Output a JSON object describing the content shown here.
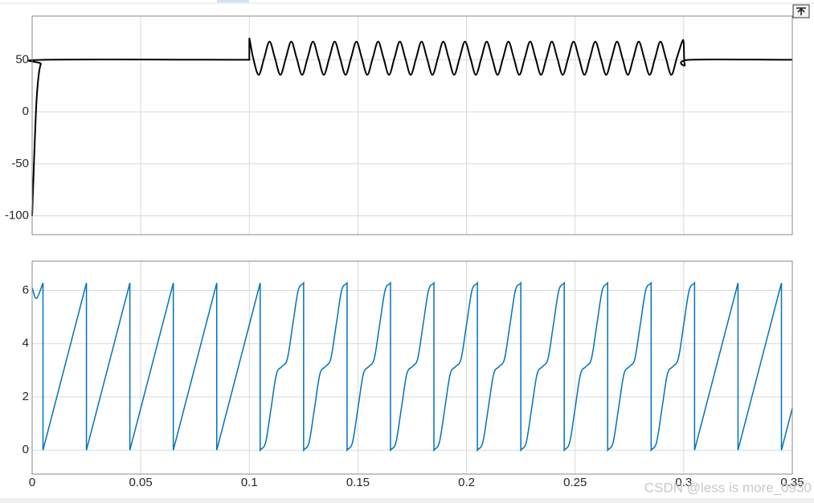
{
  "chart_data": [
    {
      "type": "line",
      "x": [
        0,
        0.001,
        0.002,
        0.003,
        0.004,
        0.006,
        0.1,
        0.1,
        0.1018,
        0.1043,
        0.1068,
        0.1093,
        0.1118,
        0.1143,
        0.1168,
        0.1193,
        0.1218,
        0.1243,
        0.1268,
        0.1293,
        0.1318,
        0.1343,
        0.1368,
        0.1393,
        0.1418,
        0.1443,
        0.1468,
        0.1493,
        0.1518,
        0.1543,
        0.1568,
        0.1593,
        0.1618,
        0.1643,
        0.1668,
        0.1693,
        0.1718,
        0.1743,
        0.1768,
        0.1793,
        0.1818,
        0.1843,
        0.1868,
        0.1893,
        0.1918,
        0.1943,
        0.1968,
        0.1993,
        0.2018,
        0.2043,
        0.2068,
        0.2093,
        0.2118,
        0.2143,
        0.2168,
        0.2193,
        0.2218,
        0.2243,
        0.2268,
        0.2293,
        0.2318,
        0.2343,
        0.2368,
        0.2393,
        0.2418,
        0.2443,
        0.2468,
        0.2493,
        0.2518,
        0.2543,
        0.2568,
        0.2593,
        0.2618,
        0.2643,
        0.2668,
        0.2693,
        0.2718,
        0.2743,
        0.2768,
        0.2793,
        0.2818,
        0.2843,
        0.2868,
        0.2893,
        0.2918,
        0.2943,
        0.2968,
        0.2993,
        0.3,
        0.3005,
        0.303,
        0.35
      ],
      "series": [
        {
          "color": "#000000",
          "values": [
            -100,
            -40,
            10,
            35,
            46,
            50,
            50,
            71,
            51.5,
            35.5,
            51.5,
            67.5,
            51.5,
            35.5,
            51.5,
            67.5,
            51.5,
            35.5,
            51.5,
            67.5,
            51.5,
            35.5,
            51.5,
            67.5,
            51.5,
            35.5,
            51.5,
            67.5,
            51.5,
            35.5,
            51.5,
            67.5,
            51.5,
            35.5,
            51.5,
            67.5,
            51.5,
            35.5,
            51.5,
            67.5,
            51.5,
            35.5,
            51.5,
            67.5,
            51.5,
            35.5,
            51.5,
            67.5,
            51.5,
            35.5,
            51.5,
            67.5,
            51.5,
            35.5,
            51.5,
            67.5,
            51.5,
            35.5,
            51.5,
            67.5,
            51.5,
            35.5,
            51.5,
            67.5,
            51.5,
            35.5,
            51.5,
            67.5,
            51.5,
            35.5,
            51.5,
            67.5,
            51.5,
            35.5,
            51.5,
            67.5,
            51.5,
            35.5,
            51.5,
            67.5,
            51.5,
            35.5,
            51.5,
            67.5,
            51.5,
            35.5,
            51.5,
            67.5,
            66,
            45,
            50,
            50
          ]
        }
      ],
      "xlim": [
        0,
        0.35
      ],
      "xticks": [
        0,
        0.05,
        0.1,
        0.15,
        0.2,
        0.25,
        0.3,
        0.35
      ],
      "ylim": [
        -118,
        92
      ],
      "yticks": [
        -100,
        -50,
        0,
        50
      ],
      "grid": true
    },
    {
      "type": "line",
      "x": [
        0,
        0.002,
        0.005,
        0.005,
        0.025,
        0.025,
        0.045,
        0.045,
        0.065,
        0.065,
        0.085,
        0.085,
        0.105,
        0.105,
        0.1075,
        0.11,
        0.1125,
        0.115,
        0.1175,
        0.12,
        0.1225,
        0.125,
        0.125,
        0.1275,
        0.13,
        0.1325,
        0.135,
        0.1375,
        0.14,
        0.1425,
        0.145,
        0.145,
        0.1475,
        0.15,
        0.1525,
        0.155,
        0.1575,
        0.16,
        0.1625,
        0.165,
        0.165,
        0.1675,
        0.17,
        0.1725,
        0.175,
        0.1775,
        0.18,
        0.1825,
        0.185,
        0.185,
        0.1875,
        0.19,
        0.1925,
        0.195,
        0.1975,
        0.2,
        0.2025,
        0.205,
        0.205,
        0.2075,
        0.21,
        0.2125,
        0.215,
        0.2175,
        0.22,
        0.2225,
        0.225,
        0.225,
        0.2275,
        0.23,
        0.2325,
        0.235,
        0.2375,
        0.24,
        0.2425,
        0.245,
        0.245,
        0.2475,
        0.25,
        0.2525,
        0.255,
        0.2575,
        0.26,
        0.2625,
        0.265,
        0.265,
        0.2675,
        0.27,
        0.2725,
        0.275,
        0.2775,
        0.28,
        0.2825,
        0.285,
        0.285,
        0.2875,
        0.29,
        0.2925,
        0.295,
        0.2975,
        0.3,
        0.3025,
        0.305,
        0.305,
        0.325,
        0.325,
        0.345,
        0.345,
        0.35
      ],
      "series": [
        {
          "color": "#0072bd",
          "values": [
            6.1,
            5.7,
            6.28,
            0,
            6.28,
            0,
            6.28,
            0,
            6.28,
            0,
            6.28,
            0,
            6.28,
            0,
            0.29,
            1.57,
            2.86,
            3.14,
            3.43,
            4.71,
            6,
            6.28,
            0,
            0.29,
            1.57,
            2.86,
            3.14,
            3.43,
            4.71,
            6,
            6.28,
            0,
            0.29,
            1.57,
            2.86,
            3.14,
            3.43,
            4.71,
            6,
            6.28,
            0,
            0.29,
            1.57,
            2.86,
            3.14,
            3.43,
            4.71,
            6,
            6.28,
            0,
            0.29,
            1.57,
            2.86,
            3.14,
            3.43,
            4.71,
            6,
            6.28,
            0,
            0.29,
            1.57,
            2.86,
            3.14,
            3.43,
            4.71,
            6,
            6.28,
            0,
            0.29,
            1.57,
            2.86,
            3.14,
            3.43,
            4.71,
            6,
            6.28,
            0,
            0.29,
            1.57,
            2.86,
            3.14,
            3.43,
            4.71,
            6,
            6.28,
            0,
            0.29,
            1.57,
            2.86,
            3.14,
            3.43,
            4.71,
            6,
            6.28,
            0,
            0.29,
            1.57,
            2.86,
            3.14,
            3.43,
            4.71,
            6,
            6.28,
            0,
            6.28,
            0,
            6.28,
            0,
            1.57
          ]
        }
      ],
      "xlim": [
        0,
        0.35
      ],
      "xticks": [
        0,
        0.05,
        0.1,
        0.15,
        0.2,
        0.25,
        0.3,
        0.35
      ],
      "ylim": [
        -0.9,
        7.1
      ],
      "yticks": [
        0,
        2,
        4,
        6
      ],
      "grid": true
    }
  ],
  "watermark": "CSDN @less is more_0930"
}
